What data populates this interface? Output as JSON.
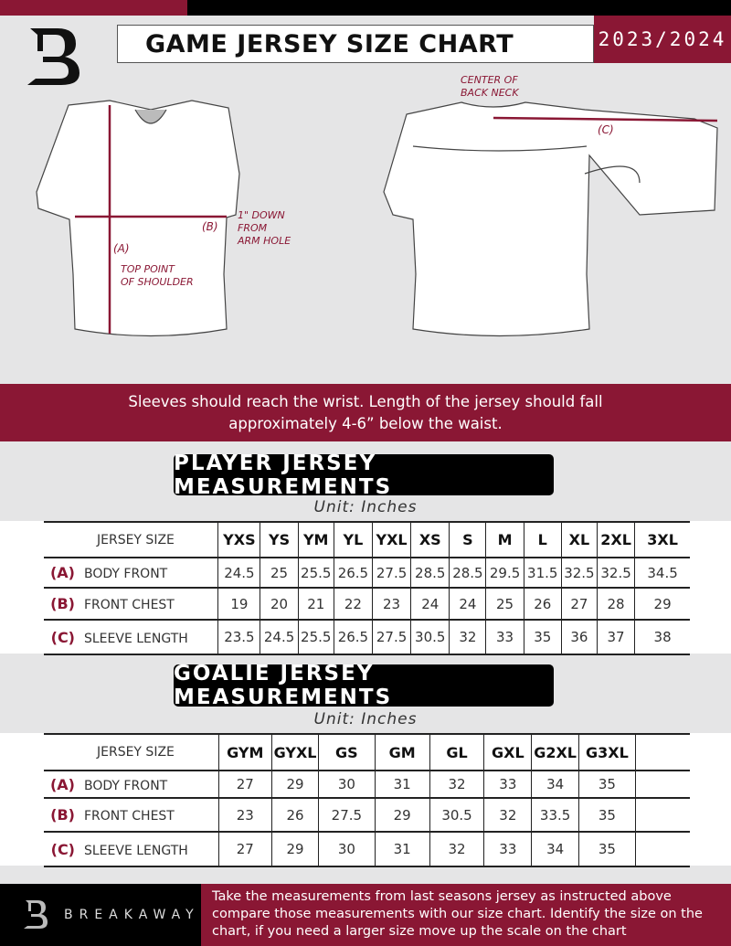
{
  "header": {
    "title": "GAME JERSEY SIZE CHART",
    "season": "2023/2024",
    "colors": {
      "accent": "#8a1734",
      "dark": "#000000"
    }
  },
  "diagram": {
    "front_labels": {
      "a": "(A)",
      "b": "(B)",
      "a_note": "TOP POINT\nOF SHOULDER",
      "b_note": "1\" DOWN\nFROM\nARM HOLE"
    },
    "back_labels": {
      "c": "(C)",
      "c_note": "CENTER OF\nBACK NECK"
    }
  },
  "instruction": "Sleeves should reach the wrist. Length of the jersey should fall approximately 4-6” below the waist.",
  "player": {
    "title": "PLAYER JERSEY MEASUREMENTS",
    "unit": "Unit: Inches",
    "header_label": "JERSEY SIZE",
    "sizes": [
      "YXS",
      "YS",
      "YM",
      "YL",
      "YXL",
      "XS",
      "S",
      "M",
      "L",
      "XL",
      "2XL",
      "3XL"
    ],
    "rows": [
      {
        "key": "(A)",
        "label": "BODY FRONT",
        "values": [
          "24.5",
          "25",
          "25.5",
          "26.5",
          "27.5",
          "28.5",
          "28.5",
          "29.5",
          "31.5",
          "32.5",
          "32.5",
          "34.5"
        ]
      },
      {
        "key": "(B)",
        "label": "FRONT CHEST",
        "values": [
          "19",
          "20",
          "21",
          "22",
          "23",
          "24",
          "24",
          "25",
          "26",
          "27",
          "28",
          "29"
        ]
      },
      {
        "key": "(C)",
        "label": "SLEEVE LENGTH",
        "values": [
          "23.5",
          "24.5",
          "25.5",
          "26.5",
          "27.5",
          "30.5",
          "32",
          "33",
          "35",
          "36",
          "37",
          "38"
        ]
      }
    ]
  },
  "goalie": {
    "title": "GOALIE JERSEY MEASUREMENTS",
    "unit": "Unit: Inches",
    "header_label": "JERSEY SIZE",
    "sizes": [
      "GYM",
      "GYXL",
      "GS",
      "GM",
      "GL",
      "GXL",
      "G2XL",
      "G3XL",
      ""
    ],
    "rows": [
      {
        "key": "(A)",
        "label": "BODY FRONT",
        "values": [
          "27",
          "29",
          "30",
          "31",
          "32",
          "33",
          "34",
          "35",
          ""
        ]
      },
      {
        "key": "(B)",
        "label": "FRONT CHEST",
        "values": [
          "23",
          "26",
          "27.5",
          "29",
          "30.5",
          "32",
          "33.5",
          "35",
          ""
        ]
      },
      {
        "key": "(C)",
        "label": "SLEEVE LENGTH",
        "values": [
          "27",
          "29",
          "30",
          "31",
          "32",
          "33",
          "34",
          "35",
          ""
        ]
      }
    ]
  },
  "footer": {
    "brand": "BREAKAWAY",
    "text": "Take the measurements from last seasons jersey as instructed above compare those measurements  with our size chart. Identify the size on the chart, if you need a larger size move up the scale on the chart"
  }
}
